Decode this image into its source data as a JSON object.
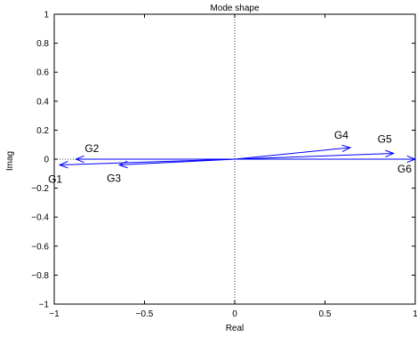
{
  "chart_data": {
    "type": "scatter",
    "title": "Mode shape",
    "xlabel": "Real",
    "ylabel": "Imag",
    "xlim": [
      -1,
      1
    ],
    "ylim": [
      -1,
      1
    ],
    "xticks": [
      -1,
      -0.5,
      0,
      0.5,
      1
    ],
    "xtick_labels": [
      "−1",
      "−0.5",
      "0",
      "0.5",
      "1"
    ],
    "yticks": [
      -1,
      -0.8,
      -0.6,
      -0.4,
      -0.2,
      0,
      0.2,
      0.4,
      0.6,
      0.8,
      1
    ],
    "ytick_labels": [
      "−1",
      "−0.8",
      "−0.6",
      "−0.4",
      "−0.2",
      "0",
      "0.2",
      "0.4",
      "0.6",
      "0.8",
      "1"
    ],
    "grid": false,
    "zero_lines": "dotted",
    "vector_color": "#0000ff",
    "vectors": [
      {
        "label": "G1",
        "x": -0.97,
        "y": -0.04
      },
      {
        "label": "G2",
        "x": -0.88,
        "y": 0.0
      },
      {
        "label": "G3",
        "x": -0.64,
        "y": -0.04
      },
      {
        "label": "G4",
        "x": 0.64,
        "y": 0.08
      },
      {
        "label": "G5",
        "x": 0.88,
        "y": 0.04
      },
      {
        "label": "G6",
        "x": 1.0,
        "y": 0.0
      }
    ]
  }
}
